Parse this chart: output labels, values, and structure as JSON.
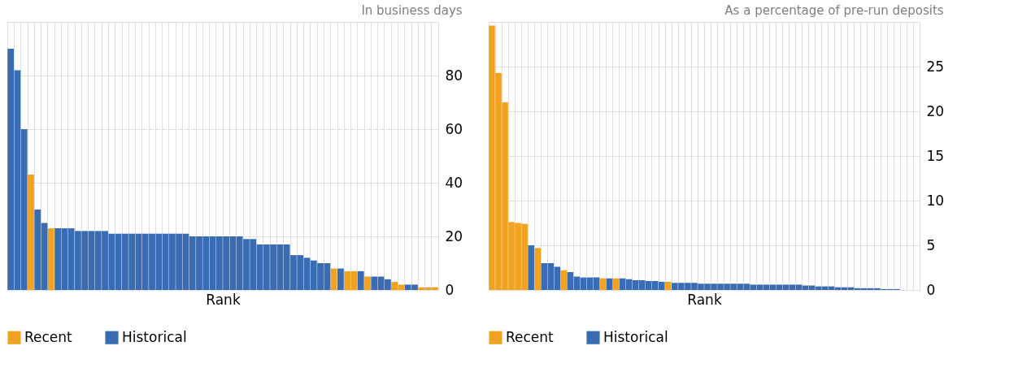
{
  "chart_data": [
    {
      "type": "bar",
      "title": "In business days",
      "xlabel": "Rank",
      "categories": [
        null,
        null,
        null,
        null,
        null,
        null,
        null,
        null,
        null,
        null,
        null,
        null,
        null,
        null,
        null,
        null,
        null,
        null,
        null,
        null,
        null,
        null,
        null,
        null,
        null,
        null,
        null,
        null,
        null,
        null,
        null,
        null,
        null,
        null,
        null,
        null,
        null,
        null,
        null,
        null,
        null,
        null,
        null,
        null,
        null,
        null,
        null,
        null,
        null,
        null,
        null,
        null,
        null,
        null,
        null,
        null,
        null,
        null,
        null,
        null,
        null,
        null,
        null,
        null
      ],
      "series": [
        {
          "name": "Recent",
          "color": "#f0a323",
          "values": [
            null,
            null,
            null,
            43,
            null,
            null,
            23,
            null,
            null,
            null,
            null,
            null,
            null,
            null,
            null,
            null,
            null,
            null,
            null,
            null,
            null,
            null,
            null,
            null,
            null,
            null,
            null,
            null,
            null,
            null,
            null,
            null,
            null,
            null,
            null,
            null,
            null,
            null,
            null,
            null,
            null,
            null,
            null,
            null,
            null,
            null,
            null,
            null,
            8,
            null,
            7,
            7,
            null,
            5,
            null,
            null,
            null,
            3,
            2,
            null,
            null,
            1,
            1,
            1
          ]
        },
        {
          "name": "Historical",
          "color": "#3a6cb4",
          "values": [
            90,
            82,
            60,
            null,
            30,
            25,
            null,
            23,
            23,
            23,
            22,
            22,
            22,
            22,
            22,
            21,
            21,
            21,
            21,
            21,
            21,
            21,
            21,
            21,
            21,
            21,
            21,
            20,
            20,
            20,
            20,
            20,
            20,
            20,
            20,
            19,
            19,
            17,
            17,
            17,
            17,
            17,
            13,
            13,
            12,
            11,
            10,
            10,
            null,
            8,
            null,
            null,
            7,
            null,
            5,
            5,
            4,
            null,
            null,
            2,
            2,
            null,
            null,
            null
          ]
        }
      ],
      "ylim": [
        0,
        100
      ],
      "yticks": [
        0,
        20,
        40,
        60,
        80
      ],
      "grid": true,
      "legend": "bottom left",
      "tick_labels": "y"
    },
    {
      "type": "bar",
      "title": "As a percentage of pre-run deposits",
      "xlabel": "Rank",
      "categories": [
        null,
        null,
        null,
        null,
        null,
        null,
        null,
        null,
        null,
        null,
        null,
        null,
        null,
        null,
        null,
        null,
        null,
        null,
        null,
        null,
        null,
        null,
        null,
        null,
        null,
        null,
        null,
        null,
        null,
        null,
        null,
        null,
        null,
        null,
        null,
        null,
        null,
        null,
        null,
        null,
        null,
        null,
        null,
        null,
        null,
        null,
        null,
        null,
        null,
        null,
        null,
        null,
        null,
        null,
        null,
        null,
        null,
        null,
        null,
        null,
        null,
        null,
        null,
        null,
        null,
        null
      ],
      "series": [
        {
          "name": "Recent",
          "color": "#f0a323",
          "values": [
            29.6,
            24.3,
            21.0,
            7.6,
            7.5,
            7.4,
            null,
            4.7,
            null,
            null,
            null,
            2.2,
            null,
            null,
            null,
            null,
            null,
            1.3,
            null,
            1.3,
            null,
            null,
            null,
            null,
            null,
            null,
            null,
            0.9,
            null,
            null,
            null,
            null,
            null,
            null,
            null,
            null,
            null,
            null,
            null,
            null,
            null,
            null,
            null,
            null,
            null,
            null,
            null,
            null,
            null,
            null,
            null,
            null,
            null,
            null,
            null,
            null,
            null,
            null,
            null,
            null,
            null,
            null,
            null,
            null,
            null,
            null
          ]
        },
        {
          "name": "Historical",
          "color": "#3a6cb4",
          "values": [
            null,
            null,
            null,
            null,
            null,
            null,
            5.0,
            null,
            3.0,
            3.0,
            2.6,
            null,
            2.0,
            1.5,
            1.4,
            1.4,
            1.4,
            null,
            1.3,
            null,
            1.3,
            1.2,
            1.1,
            1.1,
            1.0,
            1.0,
            0.9,
            null,
            0.8,
            0.8,
            0.8,
            0.8,
            0.7,
            0.7,
            0.7,
            0.7,
            0.7,
            0.7,
            0.7,
            0.7,
            0.6,
            0.6,
            0.6,
            0.6,
            0.6,
            0.6,
            0.6,
            0.6,
            0.5,
            0.5,
            0.4,
            0.4,
            0.4,
            0.3,
            0.3,
            0.3,
            0.2,
            0.2,
            0.2,
            0.2,
            0.1,
            0.1,
            0.1,
            null,
            null,
            null
          ]
        }
      ],
      "ylim": [
        0,
        30
      ],
      "yticks": [
        0,
        5,
        10,
        15,
        20,
        25
      ],
      "grid": true,
      "legend": "bottom left",
      "tick_labels": "y"
    }
  ]
}
